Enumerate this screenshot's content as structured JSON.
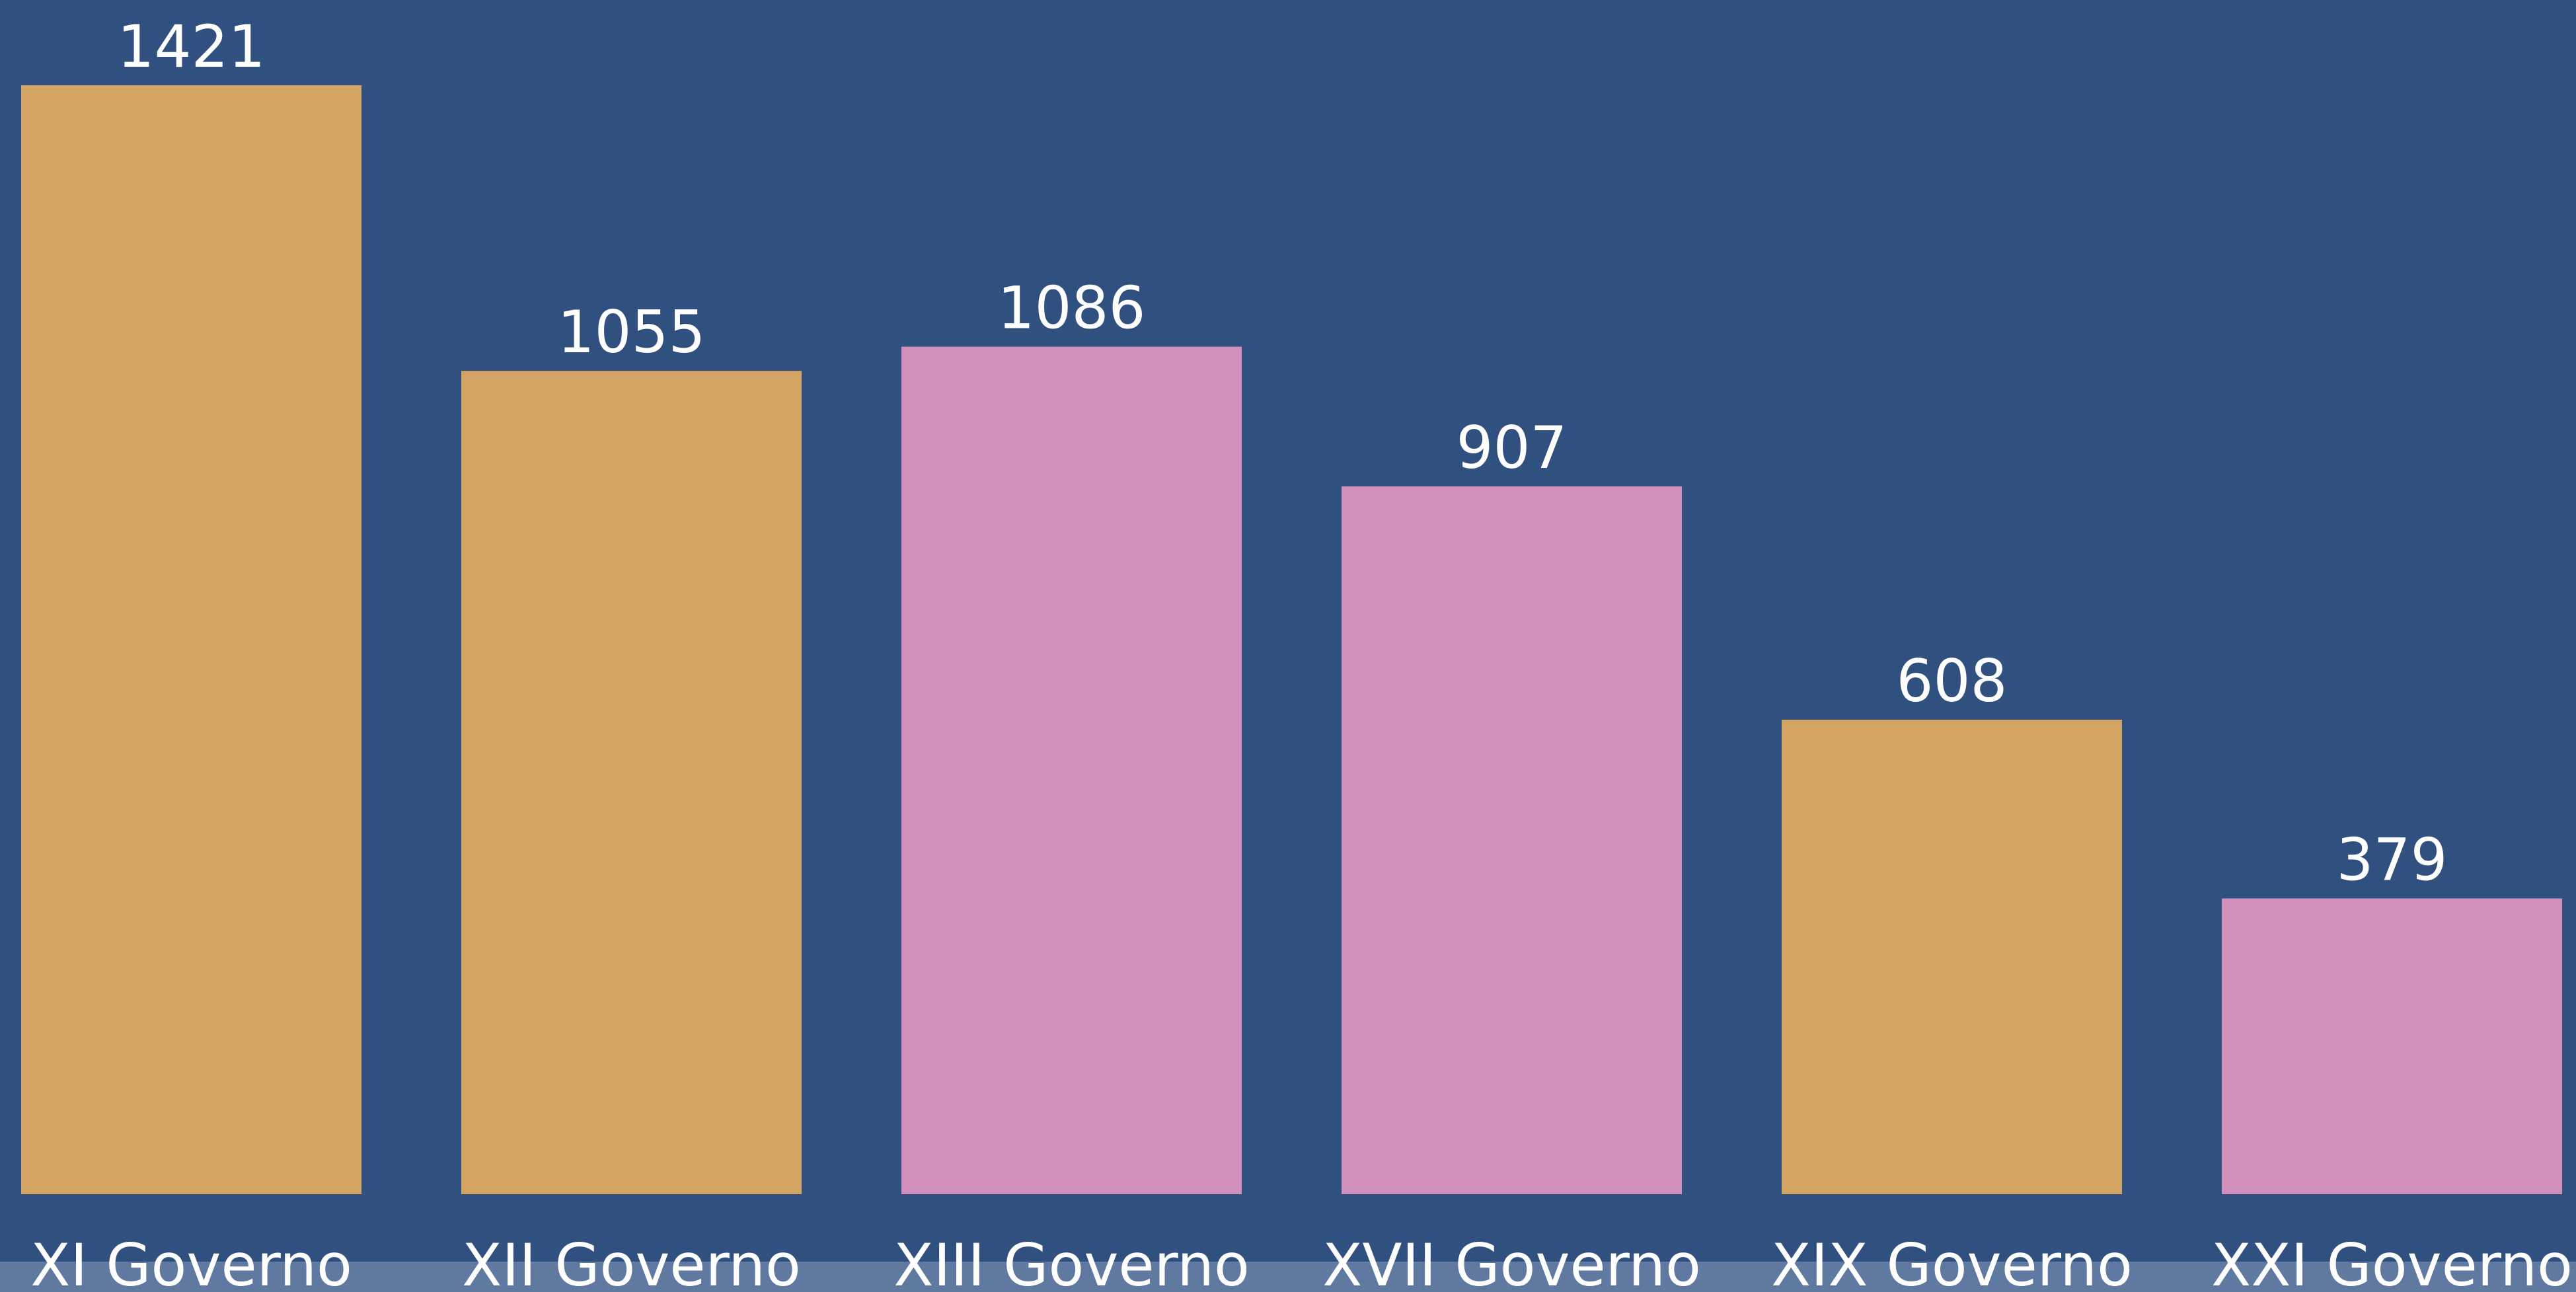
{
  "chart_data": {
    "type": "bar",
    "categories": [
      "XI Governo",
      "XII Governo",
      "XIII Governo",
      "XVII Governo",
      "XIX Governo",
      "XXI Governo"
    ],
    "values": [
      1421,
      1055,
      1086,
      907,
      608,
      379
    ],
    "colors": [
      "#d4a464",
      "#d4a464",
      "#d090bb",
      "#d090bb",
      "#d4a464",
      "#d090bb"
    ]
  }
}
